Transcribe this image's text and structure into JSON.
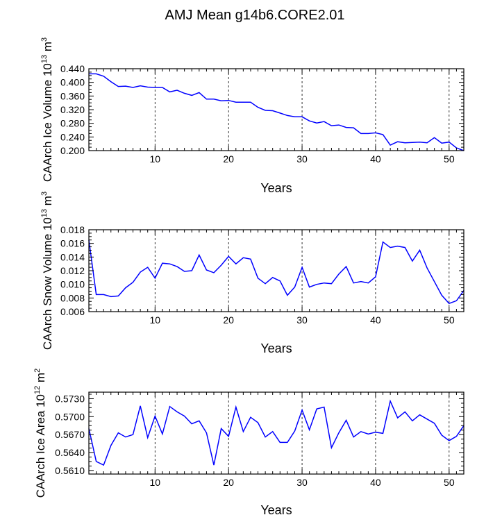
{
  "page_title": "AMJ Mean g14b6.CORE2.01",
  "chart_data": [
    {
      "type": "line",
      "title": "AMJ Mean g14b6.CORE2.01",
      "xlabel": "Years",
      "ylabel": {
        "text": "CAArch Ice Volume 10",
        "exp": "13",
        "unit": "m",
        "unit_exp": "3"
      },
      "xlim": [
        1,
        52
      ],
      "ylim": [
        0.2,
        0.44
      ],
      "xticks": [
        10,
        20,
        30,
        40,
        50
      ],
      "yticks": [
        "0.200",
        "0.240",
        "0.280",
        "0.320",
        "0.360",
        "0.400",
        "0.440"
      ],
      "grid_x": [
        10,
        20,
        30,
        40,
        50
      ],
      "line_color": "#0000ff",
      "x": [
        1,
        2,
        3,
        4,
        5,
        6,
        7,
        8,
        9,
        10,
        11,
        12,
        13,
        14,
        15,
        16,
        17,
        18,
        19,
        20,
        21,
        22,
        23,
        24,
        25,
        26,
        27,
        28,
        29,
        30,
        31,
        32,
        33,
        34,
        35,
        36,
        37,
        38,
        39,
        40,
        41,
        42,
        43,
        44,
        45,
        46,
        47,
        48,
        49,
        50,
        51,
        52
      ],
      "values": [
        0.425,
        0.425,
        0.418,
        0.402,
        0.388,
        0.389,
        0.385,
        0.39,
        0.386,
        0.385,
        0.385,
        0.372,
        0.377,
        0.368,
        0.362,
        0.37,
        0.351,
        0.351,
        0.346,
        0.347,
        0.342,
        0.342,
        0.342,
        0.327,
        0.318,
        0.317,
        0.31,
        0.303,
        0.299,
        0.299,
        0.287,
        0.281,
        0.285,
        0.273,
        0.275,
        0.268,
        0.267,
        0.25,
        0.25,
        0.252,
        0.247,
        0.216,
        0.226,
        0.223,
        0.224,
        0.225,
        0.223,
        0.238,
        0.222,
        0.225,
        0.208,
        0.2
      ]
    },
    {
      "type": "line",
      "xlabel": "Years",
      "ylabel": {
        "text": "CAArch Snow Volume 10",
        "exp": "13",
        "unit": "m",
        "unit_exp": "3"
      },
      "xlim": [
        1,
        52
      ],
      "ylim": [
        0.006,
        0.018
      ],
      "xticks": [
        10,
        20,
        30,
        40,
        50
      ],
      "yticks": [
        "0.006",
        "0.008",
        "0.010",
        "0.012",
        "0.014",
        "0.016",
        "0.018"
      ],
      "grid_x": [
        10,
        20,
        30,
        40,
        50
      ],
      "line_color": "#0000ff",
      "x": [
        1,
        2,
        3,
        4,
        5,
        6,
        7,
        8,
        9,
        10,
        11,
        12,
        13,
        14,
        15,
        16,
        17,
        18,
        19,
        20,
        21,
        22,
        23,
        24,
        25,
        26,
        27,
        28,
        29,
        30,
        31,
        32,
        33,
        34,
        35,
        36,
        37,
        38,
        39,
        40,
        41,
        42,
        43,
        44,
        45,
        46,
        47,
        48,
        49,
        50,
        51,
        52
      ],
      "values": [
        0.0165,
        0.0085,
        0.0085,
        0.0082,
        0.0083,
        0.0095,
        0.0103,
        0.0118,
        0.0125,
        0.0109,
        0.0131,
        0.013,
        0.0126,
        0.0119,
        0.012,
        0.0143,
        0.0121,
        0.0117,
        0.0128,
        0.0141,
        0.013,
        0.0139,
        0.0137,
        0.0109,
        0.0101,
        0.011,
        0.0105,
        0.0084,
        0.0096,
        0.0125,
        0.0096,
        0.01,
        0.0102,
        0.0101,
        0.0115,
        0.0126,
        0.0102,
        0.0104,
        0.0102,
        0.0111,
        0.0162,
        0.0154,
        0.0156,
        0.0154,
        0.0134,
        0.015,
        0.0124,
        0.0104,
        0.0084,
        0.0072,
        0.0076,
        0.0091
      ]
    },
    {
      "type": "line",
      "xlabel": "Years",
      "ylabel": {
        "text": "CAArch Ice Area 10",
        "exp": "12",
        "unit": "m",
        "unit_exp": "2"
      },
      "xlim": [
        1,
        52
      ],
      "ylim": [
        0.5604,
        0.5741
      ],
      "xticks": [
        10,
        20,
        30,
        40,
        50
      ],
      "yticks": [
        "0.5610",
        "0.5640",
        "0.5670",
        "0.5700",
        "0.5730"
      ],
      "grid_x": [
        10,
        20,
        30,
        40,
        50
      ],
      "line_color": "#0000ff",
      "x": [
        1,
        2,
        3,
        4,
        5,
        6,
        7,
        8,
        9,
        10,
        11,
        12,
        13,
        14,
        15,
        16,
        17,
        18,
        19,
        20,
        21,
        22,
        23,
        24,
        25,
        26,
        27,
        28,
        29,
        30,
        31,
        32,
        33,
        34,
        35,
        36,
        37,
        38,
        39,
        40,
        41,
        42,
        43,
        44,
        45,
        46,
        47,
        48,
        49,
        50,
        51,
        52
      ],
      "values": [
        0.568,
        0.5625,
        0.5619,
        0.5652,
        0.5673,
        0.5666,
        0.567,
        0.5718,
        0.5665,
        0.5701,
        0.5671,
        0.5717,
        0.5708,
        0.5701,
        0.5688,
        0.5693,
        0.5673,
        0.5619,
        0.568,
        0.5667,
        0.5716,
        0.5675,
        0.5699,
        0.569,
        0.5666,
        0.5675,
        0.5657,
        0.5657,
        0.5676,
        0.5711,
        0.5678,
        0.5713,
        0.5716,
        0.5648,
        0.5673,
        0.5694,
        0.5666,
        0.5675,
        0.5671,
        0.5674,
        0.5672,
        0.5726,
        0.5698,
        0.5708,
        0.5693,
        0.5703,
        0.5696,
        0.5689,
        0.5669,
        0.566,
        0.5667,
        0.5685
      ]
    }
  ]
}
